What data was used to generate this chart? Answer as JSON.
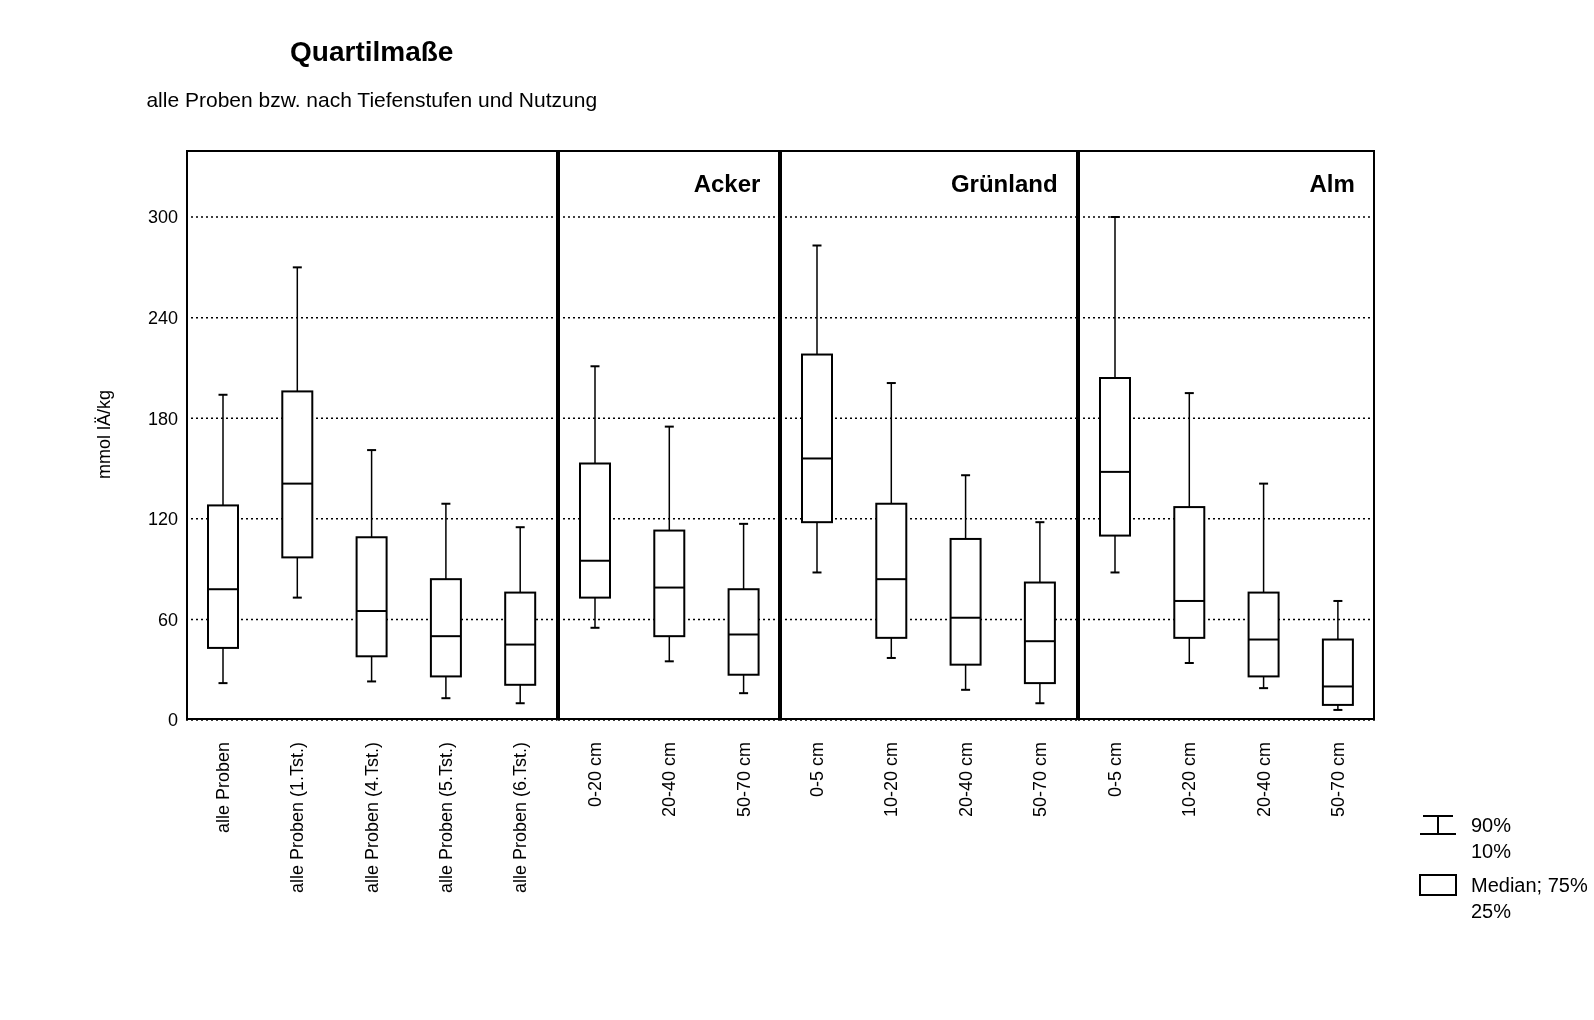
{
  "chart_data": [
    {
      "type": "box",
      "title": "Quartilmaße",
      "subtitle": "alle Proben bzw. nach Tiefenstufen und Nutzung",
      "ylabel": "mmol lÄ/kg",
      "ylim": [
        0,
        340
      ],
      "yticks": [
        0,
        60,
        120,
        180,
        240,
        300
      ],
      "grid": "y",
      "color": "#000000",
      "categories": [
        "alle Proben",
        "alle Proben (1.Tst.)",
        "alle Proben (4.Tst.)",
        "alle Proben (5.Tst.)",
        "alle Proben (6.Tst.)"
      ],
      "boxes": [
        {
          "low": 22,
          "q1": 43,
          "median": 78,
          "q3": 128,
          "high": 194
        },
        {
          "low": 73,
          "q1": 97,
          "median": 141,
          "q3": 196,
          "high": 270
        },
        {
          "low": 23,
          "q1": 38,
          "median": 65,
          "q3": 109,
          "high": 161
        },
        {
          "low": 13,
          "q1": 26,
          "median": 50,
          "q3": 84,
          "high": 129
        },
        {
          "low": 10,
          "q1": 21,
          "median": 45,
          "q3": 76,
          "high": 115
        }
      ]
    },
    {
      "type": "box",
      "title": "Acker",
      "ylim": [
        0,
        340
      ],
      "yticks": [
        0,
        60,
        120,
        180,
        240,
        300
      ],
      "grid": "y",
      "color": "#000000",
      "tick_labels": "x",
      "categories": [
        "0-20 cm",
        "20-40 cm",
        "50-70 cm"
      ],
      "boxes": [
        {
          "low": 55,
          "q1": 73,
          "median": 95,
          "q3": 153,
          "high": 211
        },
        {
          "low": 35,
          "q1": 50,
          "median": 79,
          "q3": 113,
          "high": 175
        },
        {
          "low": 16,
          "q1": 27,
          "median": 51,
          "q3": 78,
          "high": 117
        }
      ]
    },
    {
      "type": "box",
      "title": "Grünland",
      "ylim": [
        0,
        340
      ],
      "yticks": [
        0,
        60,
        120,
        180,
        240,
        300
      ],
      "grid": "y",
      "color": "#000000",
      "tick_labels": "x",
      "categories": [
        "0-5 cm",
        "10-20 cm",
        "20-40 cm",
        "50-70 cm"
      ],
      "boxes": [
        {
          "low": 88,
          "q1": 118,
          "median": 156,
          "q3": 218,
          "high": 283
        },
        {
          "low": 37,
          "q1": 49,
          "median": 84,
          "q3": 129,
          "high": 201
        },
        {
          "low": 18,
          "q1": 33,
          "median": 61,
          "q3": 108,
          "high": 146
        },
        {
          "low": 10,
          "q1": 22,
          "median": 47,
          "q3": 82,
          "high": 118
        }
      ]
    },
    {
      "type": "box",
      "title": "Alm",
      "ylim": [
        0,
        340
      ],
      "yticks": [
        0,
        60,
        120,
        180,
        240,
        300
      ],
      "grid": "y",
      "color": "#000000",
      "tick_labels": "x",
      "categories": [
        "0-5 cm",
        "10-20 cm",
        "20-40 cm",
        "50-70 cm"
      ],
      "boxes": [
        {
          "low": 88,
          "q1": 110,
          "median": 148,
          "q3": 204,
          "high": 300
        },
        {
          "low": 34,
          "q1": 49,
          "median": 71,
          "q3": 127,
          "high": 195
        },
        {
          "low": 19,
          "q1": 26,
          "median": 48,
          "q3": 76,
          "high": 141
        },
        {
          "low": 6,
          "q1": 9,
          "median": 20,
          "q3": 48,
          "high": 71
        }
      ],
      "annotations": [
        "90%",
        "10%",
        "Median; 75%",
        "25%"
      ]
    }
  ]
}
